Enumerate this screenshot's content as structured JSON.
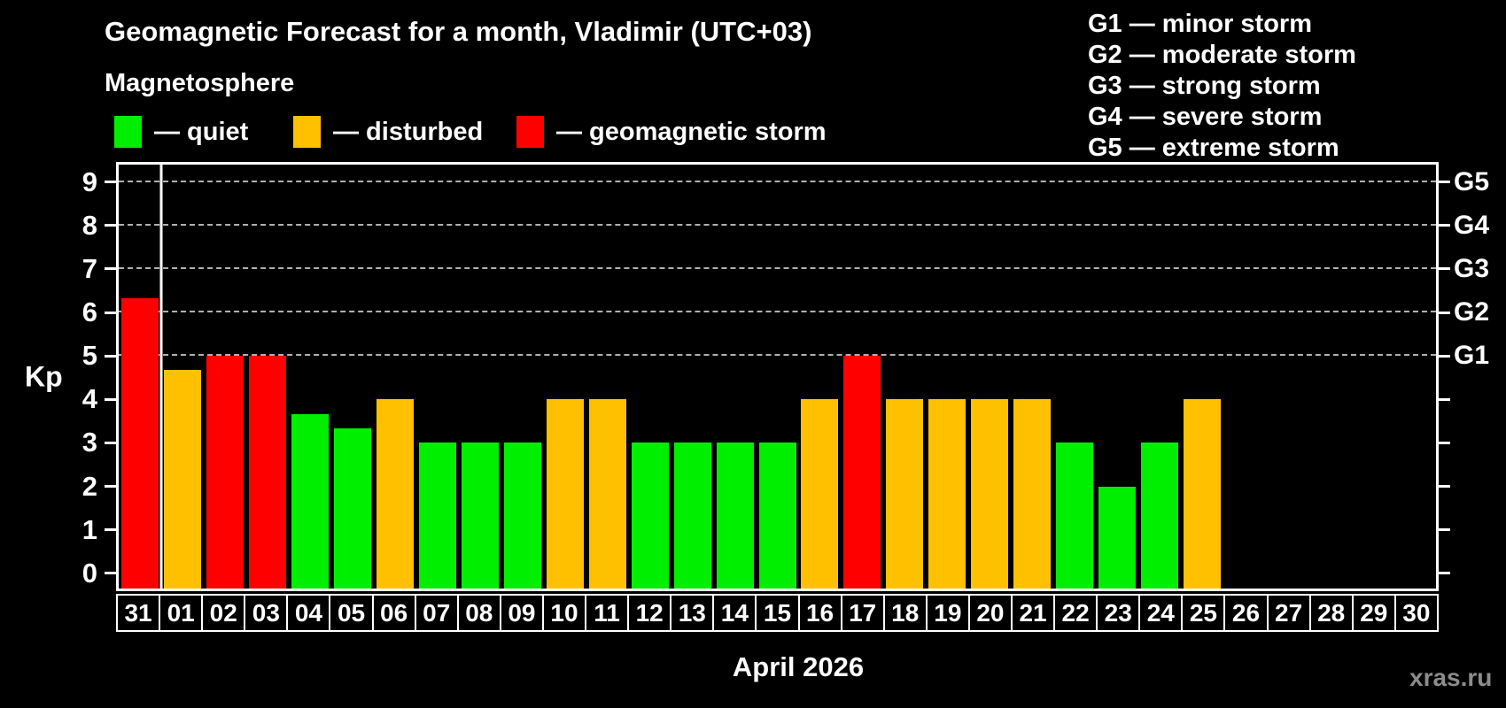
{
  "watermark": "xras.ru",
  "legend": {
    "items": [
      {
        "key": "quiet",
        "label": "— quiet",
        "color": "#00ee00"
      },
      {
        "key": "disturbed",
        "label": "— disturbed",
        "color": "#ffc000"
      },
      {
        "key": "storm",
        "label": "— geomagnetic storm",
        "color": "#ff0000"
      }
    ]
  },
  "g_scale_legend": {
    "items": [
      "G1 — minor storm",
      "G2 — moderate storm",
      "G3 — strong storm",
      "G4 — severe storm",
      "G5 — extreme storm"
    ]
  },
  "chart_data": {
    "type": "bar",
    "title": "Geomagnetic Forecast for a month, Vladimir (UTC+03)",
    "subtitle": "Magnetosphere",
    "ylabel": "Kp",
    "xlabel": "April 2026",
    "categories": [
      "31",
      "01",
      "02",
      "03",
      "04",
      "05",
      "06",
      "07",
      "08",
      "09",
      "10",
      "11",
      "12",
      "13",
      "14",
      "15",
      "16",
      "17",
      "18",
      "19",
      "20",
      "21",
      "22",
      "23",
      "24",
      "25",
      "26",
      "27",
      "28",
      "29",
      "30"
    ],
    "values": [
      6.33,
      4.67,
      5,
      5,
      3.67,
      3.33,
      4,
      3,
      3,
      3,
      4,
      4,
      3,
      3,
      3,
      3,
      4,
      5,
      4,
      4,
      4,
      4,
      3,
      2,
      3,
      4,
      null,
      null,
      null,
      null,
      null
    ],
    "levels": [
      "storm",
      "disturbed",
      "storm",
      "storm",
      "quiet",
      "quiet",
      "disturbed",
      "quiet",
      "quiet",
      "quiet",
      "disturbed",
      "disturbed",
      "quiet",
      "quiet",
      "quiet",
      "quiet",
      "disturbed",
      "storm",
      "disturbed",
      "disturbed",
      "disturbed",
      "disturbed",
      "quiet",
      "quiet",
      "quiet",
      "disturbed",
      null,
      null,
      null,
      null,
      null
    ],
    "level_colors": {
      "quiet": "#00ee00",
      "disturbed": "#ffc000",
      "storm": "#ff0000"
    },
    "yticks": [
      0,
      1,
      2,
      3,
      4,
      5,
      6,
      7,
      8,
      9
    ],
    "grid_values": [
      5,
      6,
      7,
      8,
      9
    ],
    "right_axis": [
      {
        "value": 5,
        "label": "G1"
      },
      {
        "value": 6,
        "label": "G2"
      },
      {
        "value": 7,
        "label": "G3"
      },
      {
        "value": 8,
        "label": "G4"
      },
      {
        "value": 9,
        "label": "G5"
      }
    ],
    "y_range_display": [
      -0.35,
      9.4
    ],
    "month_separator_after_index": 0,
    "grid": "horizontal dashed",
    "legend_position": "top-left",
    "background": "#000000"
  }
}
